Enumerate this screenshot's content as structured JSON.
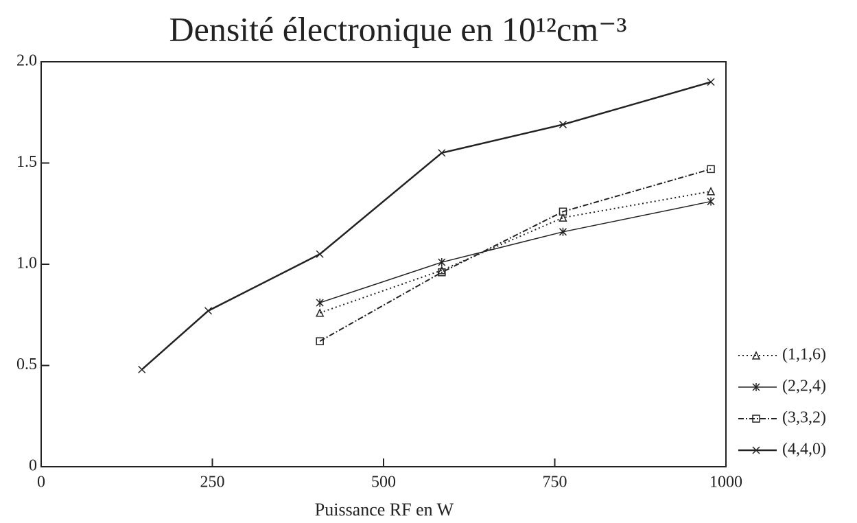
{
  "chart_data": {
    "type": "line",
    "title": "Densité électronique en 10¹²cm⁻³",
    "x_label": "Puissance RF en W",
    "xlim": [
      0,
      1000
    ],
    "xticks": [
      0,
      250,
      500,
      750,
      1000
    ],
    "ylim": [
      0,
      2.0
    ],
    "yticks": [
      0,
      0.5,
      {
        "value": 1.0,
        "label": "1.0"
      },
      1.5,
      {
        "value": 2.0,
        "label": "2.0"
      }
    ],
    "legend": "right",
    "series": [
      {
        "name": "(1,1,6)",
        "color": "#222",
        "dash": "dotted",
        "marker": "triangle",
        "x": [
          407,
          585,
          762,
          978
        ],
        "values": [
          0.76,
          0.97,
          1.23,
          1.36
        ]
      },
      {
        "name": "(2,2,4)",
        "color": "#222",
        "dash": "solid",
        "marker": "asterisk",
        "x": [
          407,
          585,
          762,
          978
        ],
        "values": [
          0.81,
          1.01,
          1.16,
          1.31
        ]
      },
      {
        "name": "(3,3,2)",
        "color": "#222",
        "dash": "dashdot",
        "marker": "square",
        "x": [
          407,
          585,
          762,
          978
        ],
        "values": [
          0.62,
          0.96,
          1.26,
          1.47
        ]
      },
      {
        "name": "(4,4,0)",
        "color": "#222",
        "dash": "thick",
        "marker": "cross",
        "x": [
          147,
          244,
          407,
          585,
          762,
          978
        ],
        "values": [
          0.48,
          0.77,
          1.05,
          1.55,
          1.69,
          1.9
        ]
      }
    ]
  }
}
